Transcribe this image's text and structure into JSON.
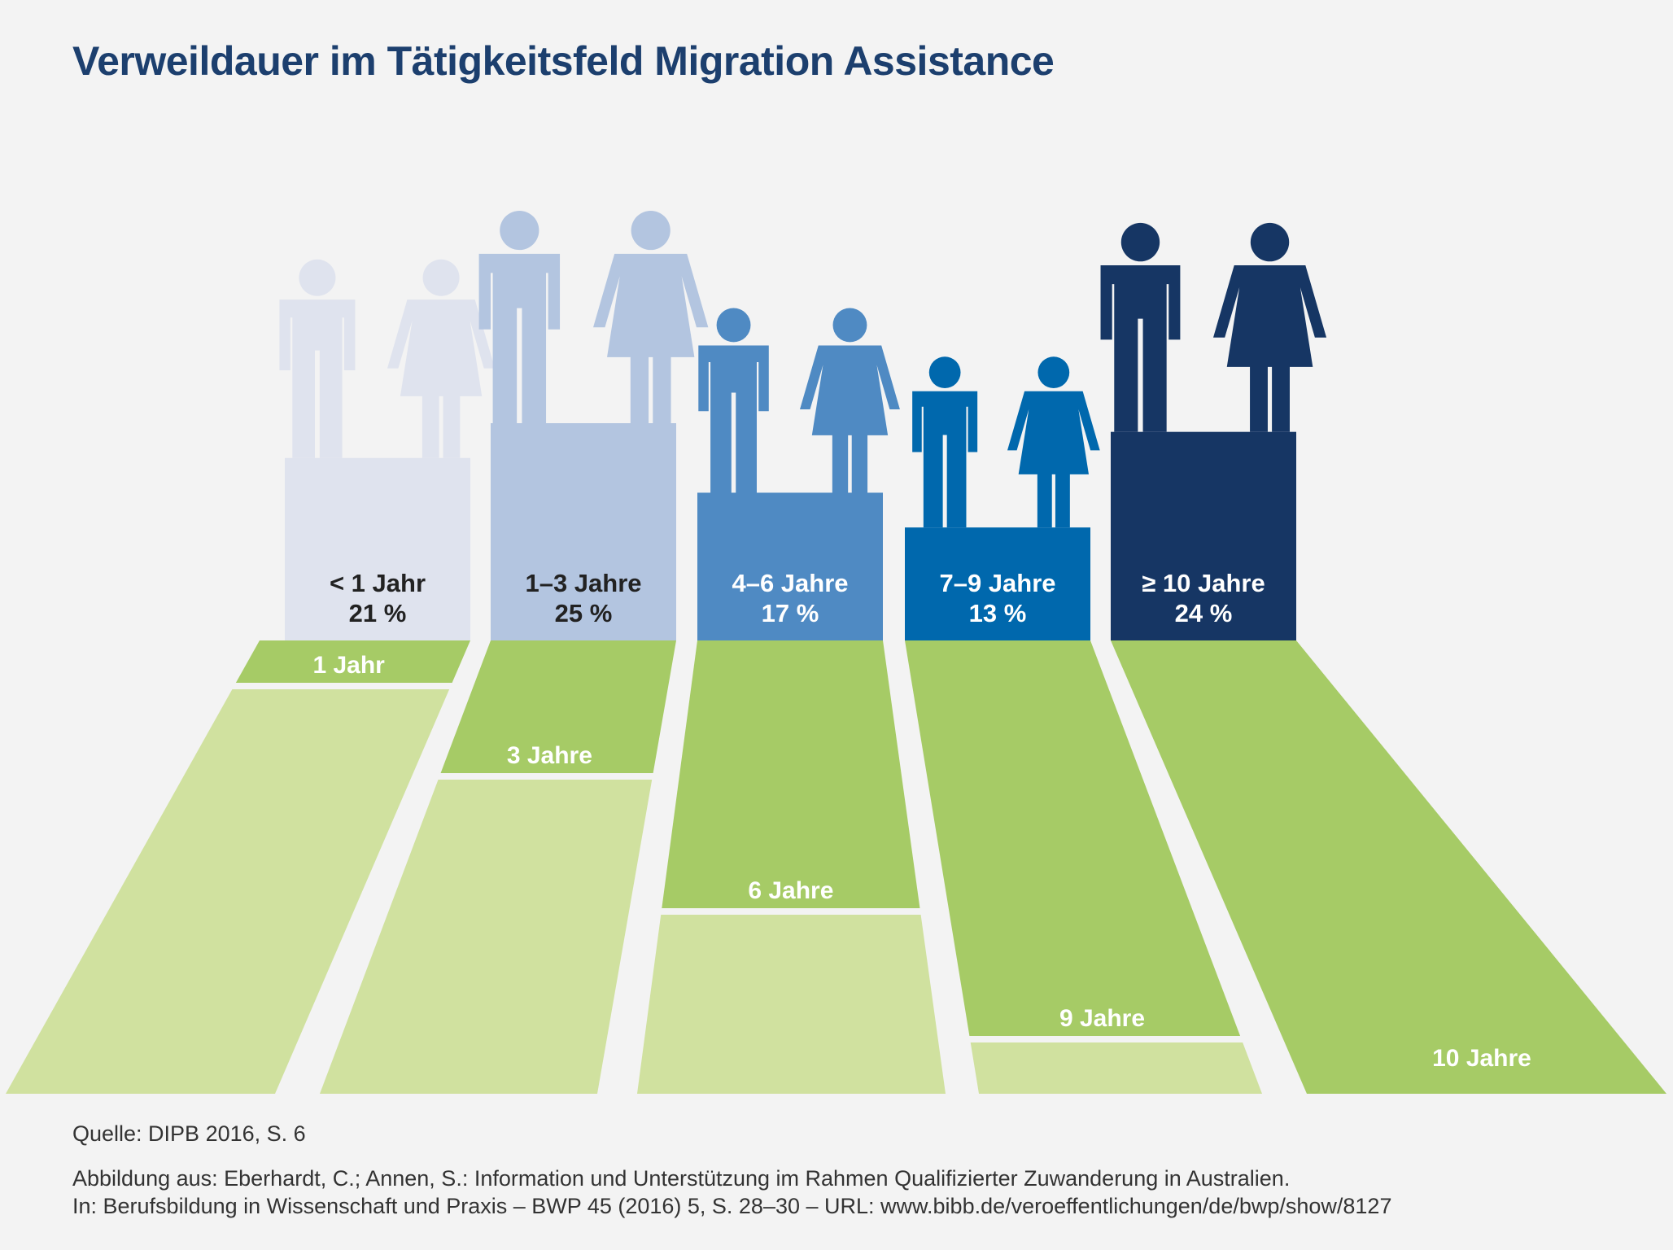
{
  "title": "Verweildauer im Tätigkeitsfeld Migration Assistance",
  "chart_data": {
    "type": "bar",
    "title": "Verweildauer im Tätigkeitsfeld Migration Assistance",
    "categories": [
      "< 1 Jahr",
      "1–3 Jahre",
      "4–6 Jahre",
      "7–9 Jahre",
      "≥ 10 Jahre"
    ],
    "values": [
      21,
      25,
      17,
      13,
      24
    ],
    "value_labels": [
      "21 %",
      "25 %",
      "17 %",
      "13 %",
      "24 %"
    ],
    "unit": "%",
    "lane_labels": [
      "1 Jahr",
      "3 Jahre",
      "6 Jahre",
      "9 Jahre",
      "10 Jahre"
    ],
    "lane_years": [
      1,
      3,
      6,
      9,
      10
    ],
    "colors": [
      "#dfe3ee",
      "#b3c5e0",
      "#4f8ac3",
      "#0068ad",
      "#163664"
    ],
    "label_colors": [
      "#222222",
      "#222222",
      "#ffffff",
      "#ffffff",
      "#ffffff"
    ],
    "green_dark": "#a6cb66",
    "green_light": "#d0e19f",
    "xlabel": "",
    "ylabel": ""
  },
  "footer": {
    "source": "Quelle: DIPB 2016, S. 6",
    "citation_1": "Abbildung aus: Eberhardt, C.; Annen, S.: Information und Unterstützung im Rahmen Qualifizierter Zuwanderung in Australien.",
    "citation_2": "In: Berufsbildung in Wissenschaft und Praxis – BWP 45 (2016) 5, S. 28–30 – URL: www.bibb.de/veroeffentlichungen/de/bwp/show/8127"
  }
}
